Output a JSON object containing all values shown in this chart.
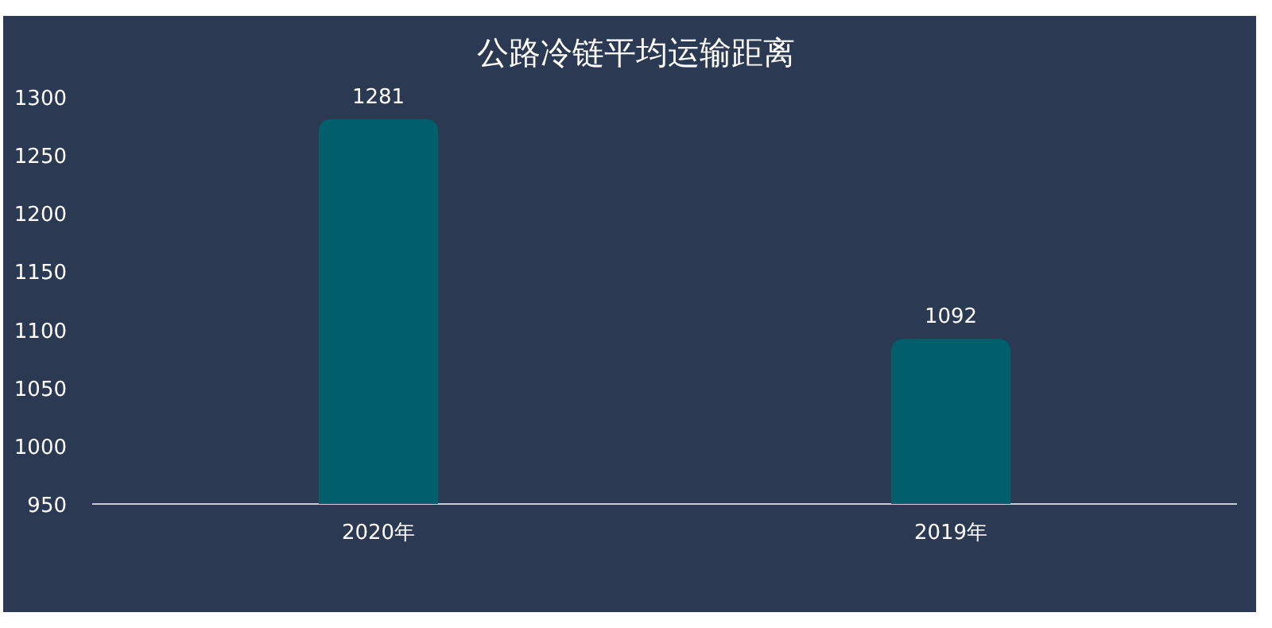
{
  "chart_data": {
    "type": "bar",
    "title": "公路冷链平均运输距离",
    "categories": [
      "2020年",
      "2019年"
    ],
    "values": [
      1281,
      1092
    ],
    "color": "#005f6b",
    "ylim": [
      950,
      1300
    ],
    "yticks": [
      950,
      1000,
      1050,
      1100,
      1150,
      1200,
      1250,
      1300
    ],
    "data_labels": true
  }
}
